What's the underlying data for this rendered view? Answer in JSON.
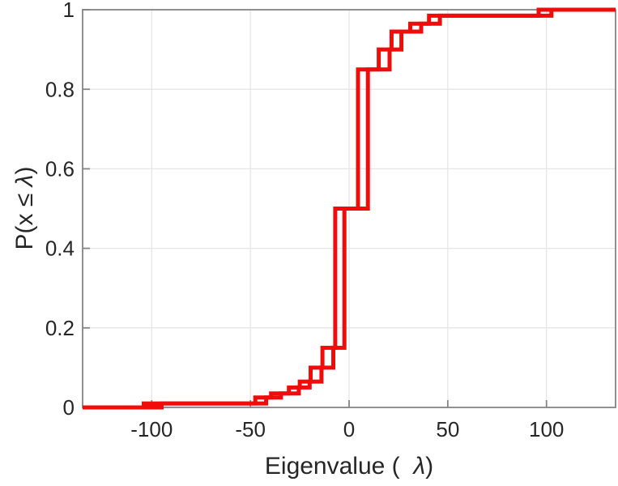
{
  "figure": {
    "background": "#ffffff",
    "xlabel_parts": {
      "prefix": "Eigenvalue (  ",
      "lambda": "λ",
      "suffix": ")"
    },
    "ylabel_parts": {
      "prefix": "P(x ≤ ",
      "lambda": "λ",
      "suffix": ")"
    }
  },
  "chart_data": {
    "type": "line",
    "subtype": "ecdf-stairs",
    "title": "",
    "xlabel": "Eigenvalue (  λ)",
    "ylabel": "P(x ≤ λ)",
    "xlim": [
      -135,
      135
    ],
    "ylim": [
      0,
      1
    ],
    "xticks": [
      -100,
      -50,
      0,
      50,
      100
    ],
    "yticks": [
      0,
      0.2,
      0.4,
      0.6,
      0.8,
      1
    ],
    "grid": true,
    "legend": null,
    "style": {
      "line_color": "#f10c0c",
      "line_width": 5,
      "axis_color": "#848484",
      "grid_color": "#e6e6e6",
      "tick_label_color": "#262626",
      "tick_label_size": 26
    },
    "series": [
      {
        "name": "ecdf-curve-1",
        "steps": [
          [
            -104,
            0.01
          ],
          [
            -47.5,
            0.025
          ],
          [
            -39.5,
            0.035
          ],
          [
            -30.5,
            0.05
          ],
          [
            -25,
            0.065
          ],
          [
            -19.5,
            0.1
          ],
          [
            -13.5,
            0.15
          ],
          [
            -7,
            0.5
          ],
          [
            4.5,
            0.85
          ],
          [
            15,
            0.9
          ],
          [
            21.5,
            0.945
          ],
          [
            31,
            0.965
          ],
          [
            40.5,
            0.985
          ],
          [
            96,
            1.0
          ]
        ]
      },
      {
        "name": "ecdf-curve-2",
        "steps": [
          [
            -95,
            0.01
          ],
          [
            -42,
            0.025
          ],
          [
            -34.5,
            0.035
          ],
          [
            -25.5,
            0.05
          ],
          [
            -20,
            0.065
          ],
          [
            -14,
            0.1
          ],
          [
            -8,
            0.15
          ],
          [
            -2.4,
            0.5
          ],
          [
            9.5,
            0.85
          ],
          [
            20.5,
            0.9
          ],
          [
            26.5,
            0.945
          ],
          [
            36.5,
            0.965
          ],
          [
            46,
            0.985
          ],
          [
            102.5,
            1.0
          ]
        ]
      }
    ]
  }
}
